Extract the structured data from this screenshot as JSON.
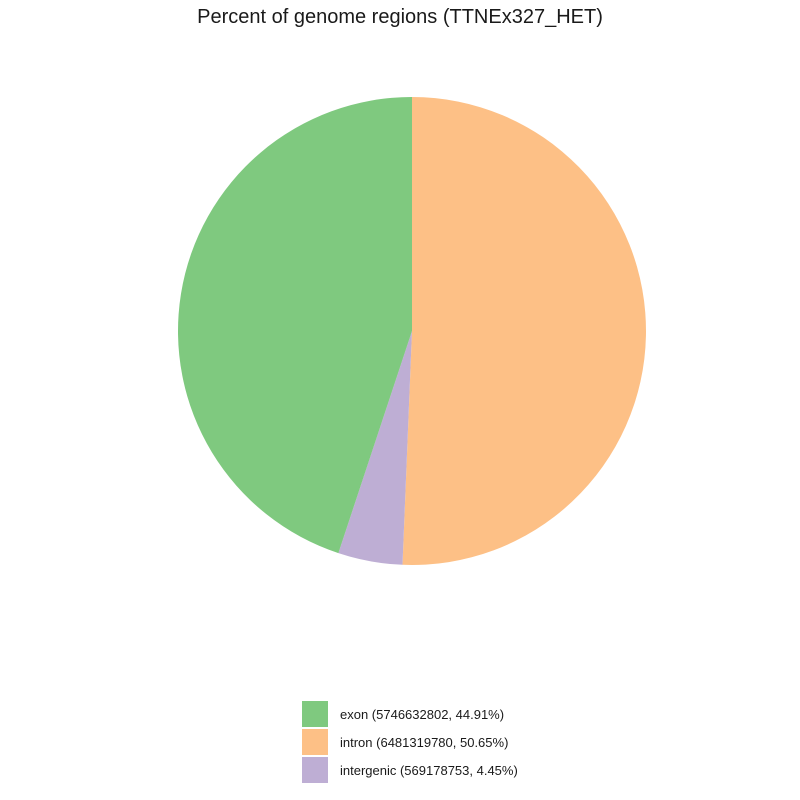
{
  "chart_data": {
    "type": "pie",
    "title": "Percent of genome regions (TTNEx327_HET)",
    "legend_position": "bottom",
    "slices": [
      {
        "label": "exon",
        "value": 5746632802,
        "percent": 44.91,
        "color": "#7fc97f",
        "legend": "exon (5746632802, 44.91%)"
      },
      {
        "label": "intron",
        "value": 6481319780,
        "percent": 50.65,
        "color": "#fdc086",
        "legend": "intron (6481319780, 50.65%)"
      },
      {
        "label": "intergenic",
        "value": 569178753,
        "percent": 4.45,
        "color": "#beaed4",
        "legend": "intergenic (569178753, 4.45%)"
      }
    ]
  }
}
